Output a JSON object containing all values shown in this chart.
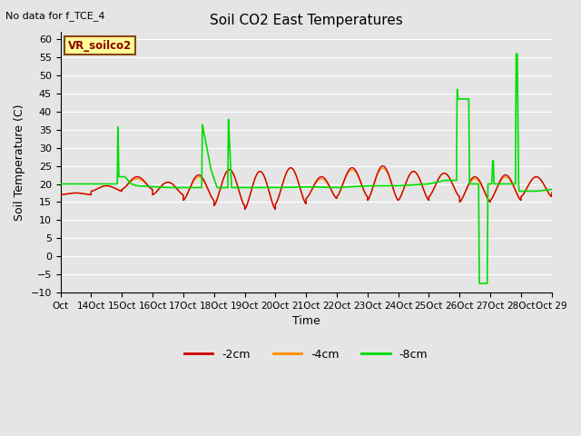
{
  "title": "Soil CO2 East Temperatures",
  "no_data_label": "No data for f_TCE_4",
  "sensor_label": "VR_soilco2",
  "xlabel": "Time",
  "ylabel": "Soil Temperature (C)",
  "ylim": [
    -10,
    62
  ],
  "xlim": [
    0,
    16
  ],
  "yticks": [
    -10,
    -5,
    0,
    5,
    10,
    15,
    20,
    25,
    30,
    35,
    40,
    45,
    50,
    55,
    60
  ],
  "xtick_positions": [
    0,
    1,
    2,
    3,
    4,
    5,
    6,
    7,
    8,
    9,
    10,
    11,
    12,
    13,
    14,
    15,
    16
  ],
  "xtick_labels": [
    "Oct",
    "14Oct",
    "15Oct",
    "16Oct",
    "17Oct",
    "18Oct",
    "19Oct",
    "20Oct",
    "21Oct",
    "22Oct",
    "23Oct",
    "24Oct",
    "25Oct",
    "26Oct",
    "27Oct",
    "28Oct",
    "Oct 29"
  ],
  "bg_color": "#e5e5e5",
  "plot_bg_color": "#e5e5e5",
  "grid_color": "#ffffff",
  "color_2cm": "#cc0000",
  "color_4cm": "#ff8c00",
  "color_8cm": "#00dd00",
  "legend_labels": [
    "-2cm",
    "-4cm",
    "-8cm"
  ],
  "day_peaks_2cm": [
    17.5,
    19.5,
    22.0,
    20.5,
    22.5,
    24.0,
    23.5,
    24.5,
    22.0,
    24.5,
    25.0,
    23.5,
    23.0,
    22.0,
    22.5,
    22.0,
    18.5
  ],
  "day_troughs_2cm": [
    17.0,
    18.0,
    18.5,
    17.0,
    15.5,
    14.0,
    13.0,
    14.5,
    16.0,
    16.5,
    15.5,
    15.5,
    16.5,
    15.0,
    15.5,
    16.5,
    17.5
  ],
  "day_peaks_4cm": [
    17.5,
    19.5,
    21.5,
    20.5,
    22.0,
    24.0,
    23.5,
    24.5,
    21.5,
    24.0,
    24.5,
    23.5,
    23.0,
    21.5,
    22.0,
    22.0,
    18.5
  ],
  "day_troughs_4cm": [
    17.0,
    18.0,
    18.5,
    17.0,
    15.5,
    14.0,
    13.0,
    14.5,
    16.0,
    16.5,
    15.5,
    15.5,
    16.5,
    15.0,
    15.5,
    16.5,
    17.5
  ],
  "green_key_x": [
    0,
    1.0,
    1.85,
    1.87,
    1.9,
    2.1,
    2.3,
    2.5,
    3.5,
    4.6,
    4.62,
    4.9,
    5.1,
    5.45,
    5.47,
    5.55,
    5.57,
    5.8,
    6.0,
    7.0,
    8.0,
    9.0,
    10.0,
    11.0,
    12.0,
    12.5,
    12.9,
    12.92,
    12.95,
    13.3,
    13.32,
    13.5,
    13.55,
    13.62,
    13.64,
    13.9,
    13.92,
    14.05,
    14.08,
    14.1,
    14.12,
    14.82,
    14.84,
    14.88,
    14.92,
    14.94,
    15.5,
    16.0
  ],
  "green_key_y": [
    20,
    20,
    20,
    37,
    22,
    22,
    20,
    19.5,
    19,
    19,
    36.5,
    24,
    19,
    19,
    38.5,
    23,
    19,
    19,
    19,
    19,
    19.2,
    19,
    19.5,
    19.5,
    20,
    21,
    21,
    46.5,
    43.5,
    43.5,
    20,
    20,
    20,
    20,
    -7.5,
    -7.5,
    20,
    20,
    26.5,
    26.5,
    20,
    20,
    56,
    56,
    20,
    18,
    18,
    18.5
  ]
}
